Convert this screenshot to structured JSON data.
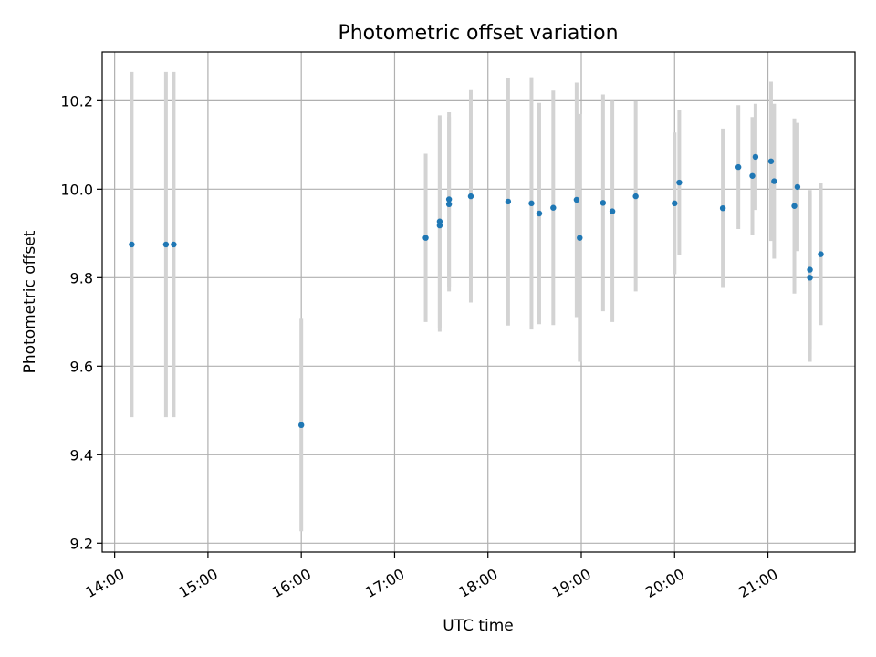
{
  "chart_data": {
    "type": "scatter",
    "title": "Photometric offset variation",
    "xlabel": "UTC time",
    "ylabel": "Photometric offset",
    "x_ticks": [
      "14:00",
      "15:00",
      "16:00",
      "17:00",
      "18:00",
      "19:00",
      "20:00",
      "21:00"
    ],
    "y_ticks": [
      "9.2",
      "9.4",
      "9.6",
      "9.8",
      "10.0",
      "10.2"
    ],
    "xlim": [
      "13:52",
      "21:56"
    ],
    "ylim": [
      9.18,
      10.31
    ],
    "grid": true,
    "colors": {
      "marker": "#1f77b4",
      "errorbar": "#d3d3d3"
    },
    "series": [
      {
        "points": [
          {
            "t": "14:11",
            "y": 9.875,
            "err": 0.39
          },
          {
            "t": "14:33",
            "y": 9.875,
            "err": 0.39
          },
          {
            "t": "14:38",
            "y": 9.875,
            "err": 0.39
          },
          {
            "t": "16:00",
            "y": 9.467,
            "err": 0.24
          },
          {
            "t": "17:20",
            "y": 9.89,
            "err": 0.19
          },
          {
            "t": "17:29",
            "y": 9.918,
            "err": 0.24
          },
          {
            "t": "17:29",
            "y": 9.927,
            "err": 0.24
          },
          {
            "t": "17:35",
            "y": 9.977,
            "err": 0.197
          },
          {
            "t": "17:35",
            "y": 9.966,
            "err": 0.197
          },
          {
            "t": "17:49",
            "y": 9.984,
            "err": 0.24
          },
          {
            "t": "18:13",
            "y": 9.972,
            "err": 0.28
          },
          {
            "t": "18:28",
            "y": 9.968,
            "err": 0.285
          },
          {
            "t": "18:33",
            "y": 9.945,
            "err": 0.25
          },
          {
            "t": "18:42",
            "y": 9.958,
            "err": 0.265
          },
          {
            "t": "18:57",
            "y": 9.976,
            "err": 0.265
          },
          {
            "t": "18:59",
            "y": 9.89,
            "err": 0.28
          },
          {
            "t": "19:14",
            "y": 9.969,
            "err": 0.245
          },
          {
            "t": "19:20",
            "y": 9.95,
            "err": 0.25
          },
          {
            "t": "19:35",
            "y": 9.984,
            "err": 0.215
          },
          {
            "t": "20:00",
            "y": 9.968,
            "err": 0.16
          },
          {
            "t": "20:03",
            "y": 10.015,
            "err": 0.163
          },
          {
            "t": "20:31",
            "y": 9.957,
            "err": 0.18
          },
          {
            "t": "20:41",
            "y": 10.05,
            "err": 0.14
          },
          {
            "t": "20:50",
            "y": 10.03,
            "err": 0.133
          },
          {
            "t": "20:52",
            "y": 10.073,
            "err": 0.12
          },
          {
            "t": "21:02",
            "y": 10.063,
            "err": 0.18
          },
          {
            "t": "21:04",
            "y": 10.018,
            "err": 0.175
          },
          {
            "t": "21:17",
            "y": 9.962,
            "err": 0.198
          },
          {
            "t": "21:19",
            "y": 10.005,
            "err": 0.145
          },
          {
            "t": "21:27",
            "y": 9.818,
            "err": 0.18
          },
          {
            "t": "21:27",
            "y": 9.8,
            "err": 0.19
          },
          {
            "t": "21:34",
            "y": 9.853,
            "err": 0.16
          }
        ]
      }
    ]
  }
}
